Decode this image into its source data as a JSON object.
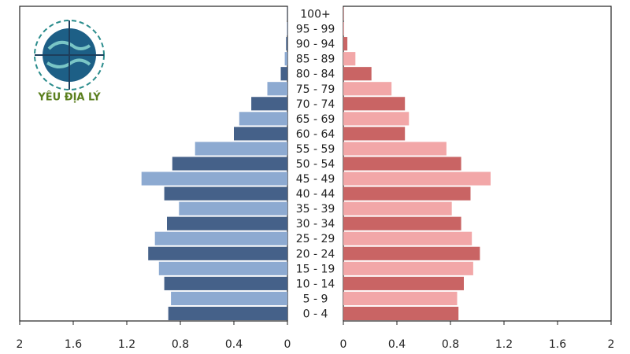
{
  "watermark": "YÊU ĐỊA LÝ",
  "chart_data": {
    "type": "pyramid",
    "categories": [
      "0 - 4",
      "5 - 9",
      "10 - 14",
      "15 - 19",
      "20 - 24",
      "25 - 29",
      "30 - 34",
      "35 - 39",
      "40 - 44",
      "45 - 49",
      "50 - 54",
      "55 - 59",
      "60 - 64",
      "65 - 69",
      "70 - 74",
      "75 - 79",
      "80 - 84",
      "85 - 89",
      "90 - 94",
      "95 - 99",
      "100+"
    ],
    "series": [
      {
        "colors": [
          "#456189",
          "#8daad1"
        ],
        "xlim": [
          2,
          0
        ],
        "xticks": [
          2,
          1.6,
          1.2,
          0.8,
          0.4,
          0
        ],
        "values": [
          0.89,
          0.87,
          0.92,
          0.96,
          1.04,
          0.99,
          0.9,
          0.81,
          0.92,
          1.09,
          0.86,
          0.69,
          0.4,
          0.36,
          0.27,
          0.15,
          0.05,
          0.02,
          0.01,
          0.004,
          0.002
        ]
      },
      {
        "colors": [
          "#c96464",
          "#f2a7a8"
        ],
        "xlim": [
          0,
          2
        ],
        "xticks": [
          0,
          0.4,
          0.8,
          1.2,
          1.6,
          2
        ],
        "values": [
          0.86,
          0.85,
          0.9,
          0.97,
          1.02,
          0.96,
          0.88,
          0.81,
          0.95,
          1.1,
          0.88,
          0.77,
          0.46,
          0.49,
          0.46,
          0.36,
          0.21,
          0.09,
          0.03,
          0.006,
          0.003
        ]
      }
    ]
  }
}
